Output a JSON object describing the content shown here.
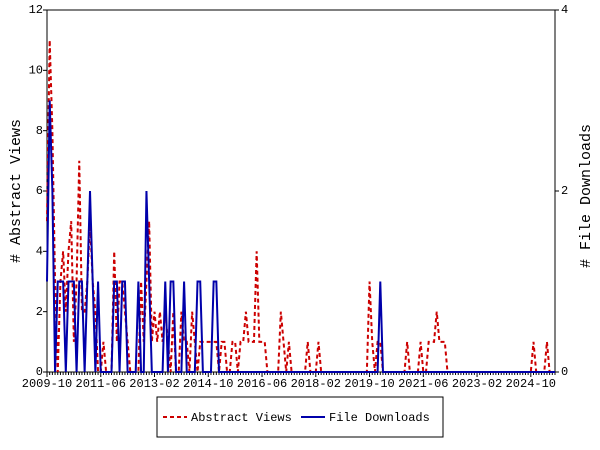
{
  "chart_data": {
    "type": "line",
    "ylabel": "# Abstract Views",
    "y2label": "# File Downloads",
    "categories": [
      "2009-10",
      null,
      null,
      null,
      null,
      null,
      null,
      null,
      null,
      null,
      null,
      null,
      null,
      null,
      null,
      null,
      null,
      null,
      null,
      null,
      "2011-06",
      null,
      null,
      null,
      null,
      null,
      null,
      null,
      null,
      null,
      null,
      null,
      null,
      null,
      null,
      null,
      null,
      null,
      null,
      null,
      "2013-02",
      null,
      null,
      null,
      null,
      null,
      null,
      null,
      null,
      null,
      null,
      null,
      null,
      null,
      null,
      null,
      null,
      null,
      null,
      null,
      "2014-10",
      null,
      null,
      null,
      null,
      null,
      null,
      null,
      null,
      null,
      null,
      null,
      null,
      null,
      null,
      null,
      null,
      null,
      null,
      null,
      "2016-06",
      null,
      null,
      null,
      null,
      null,
      null,
      null,
      null,
      null,
      null,
      null,
      null,
      null,
      null,
      null,
      null,
      null,
      null,
      null,
      "2018-02",
      null,
      null,
      null,
      null,
      null,
      null,
      null,
      null,
      null,
      null,
      null,
      null,
      null,
      null,
      null,
      null,
      null,
      null,
      null,
      "2019-10",
      null,
      null,
      null,
      null,
      null,
      null,
      null,
      null,
      null,
      null,
      null,
      null,
      null,
      null,
      null,
      null,
      null,
      null,
      null,
      "2021-06",
      null,
      null,
      null,
      null,
      null,
      null,
      null,
      null,
      null,
      null,
      null,
      null,
      null,
      null,
      null,
      null,
      null,
      null,
      null,
      "2023-02",
      null,
      null,
      null,
      null,
      null,
      null,
      null,
      null,
      null,
      null,
      null,
      null,
      null,
      null,
      null,
      null,
      null,
      null,
      null,
      "2024-10",
      null,
      null,
      null,
      null,
      null,
      null,
      null,
      null,
      null
    ],
    "series": [
      {
        "name": "Abstract Views",
        "color": "#cc0000",
        "dashed": true,
        "values": [
          5,
          11,
          8,
          3,
          0,
          3,
          4,
          2,
          4,
          5,
          1,
          3,
          7,
          2,
          2,
          3,
          5,
          3,
          2,
          0,
          0,
          1,
          0,
          0,
          0,
          4,
          1,
          3,
          3,
          2,
          1,
          0,
          0,
          0,
          0,
          3,
          1,
          3,
          5,
          1,
          2,
          1,
          2,
          1,
          2,
          1,
          0,
          2,
          0,
          0,
          2,
          1,
          1,
          0,
          2,
          1,
          0,
          1,
          1,
          1,
          1,
          1,
          1,
          1,
          0,
          1,
          1,
          0,
          0,
          1,
          1,
          0,
          1,
          1,
          2,
          1,
          1,
          1,
          4,
          1,
          1,
          1,
          0,
          0,
          0,
          0,
          0,
          2,
          1,
          0,
          1,
          0,
          0,
          0,
          0,
          0,
          0,
          1,
          0,
          0,
          0,
          1,
          0,
          0,
          0,
          0,
          0,
          0,
          0,
          0,
          0,
          0,
          0,
          0,
          0,
          0,
          0,
          0,
          0,
          0,
          3,
          1,
          0,
          1,
          1,
          0,
          0,
          0,
          0,
          0,
          0,
          0,
          0,
          0,
          1,
          0,
          0,
          0,
          0,
          1,
          0,
          0,
          1,
          1,
          1,
          2,
          1,
          1,
          1,
          0,
          0,
          0,
          0,
          0,
          0,
          0,
          0,
          0,
          0,
          0,
          0,
          0,
          0,
          0,
          0,
          0,
          0,
          0,
          0,
          0,
          0,
          0,
          0,
          0,
          0,
          0,
          0,
          0,
          0,
          0,
          0,
          1,
          0,
          0,
          0,
          0,
          1,
          0,
          0,
          0
        ]
      },
      {
        "name": "File Downloads",
        "color": "#0000aa",
        "dashed": false,
        "axis": "y2",
        "values": [
          1,
          3,
          2,
          0,
          1,
          1,
          1,
          0,
          1,
          1,
          1,
          0,
          1,
          1,
          0,
          1,
          2,
          1,
          0,
          1,
          0,
          0,
          0,
          0,
          0,
          1,
          1,
          0,
          1,
          1,
          0,
          0,
          0,
          0,
          1,
          0,
          0,
          2,
          1,
          0,
          0,
          0,
          0,
          0,
          1,
          0,
          1,
          1,
          0,
          0,
          0,
          1,
          0,
          0,
          0,
          0,
          1,
          1,
          0,
          0,
          0,
          0,
          1,
          1,
          0,
          0,
          0,
          0,
          0,
          0,
          0,
          0,
          0,
          0,
          0,
          0,
          0,
          0,
          0,
          0,
          0,
          0,
          0,
          0,
          0,
          0,
          0,
          0,
          0,
          0,
          0,
          0,
          0,
          0,
          0,
          0,
          0,
          0,
          0,
          0,
          0,
          0,
          0,
          0,
          0,
          0,
          0,
          0,
          0,
          0,
          0,
          0,
          0,
          0,
          0,
          0,
          0,
          0,
          0,
          0,
          0,
          0,
          0,
          0,
          1,
          0,
          0,
          0,
          0,
          0,
          0,
          0,
          0,
          0,
          0,
          0,
          0,
          0,
          0,
          0,
          0,
          0,
          0,
          0,
          0,
          0,
          0,
          0,
          0,
          0,
          0,
          0,
          0,
          0,
          0,
          0,
          0,
          0,
          0,
          0,
          0,
          0,
          0,
          0,
          0,
          0,
          0,
          0,
          0,
          0,
          0,
          0,
          0,
          0,
          0,
          0,
          0,
          0,
          0,
          0,
          0,
          0,
          0,
          0,
          0,
          0,
          0,
          0,
          0,
          0
        ]
      }
    ],
    "ylim": [
      0,
      12
    ],
    "yticks": [
      0,
      2,
      4,
      6,
      8,
      10,
      12
    ],
    "y2lim": [
      0,
      4
    ],
    "y2ticks": [
      0,
      2,
      4
    ],
    "legend": "bottom"
  }
}
